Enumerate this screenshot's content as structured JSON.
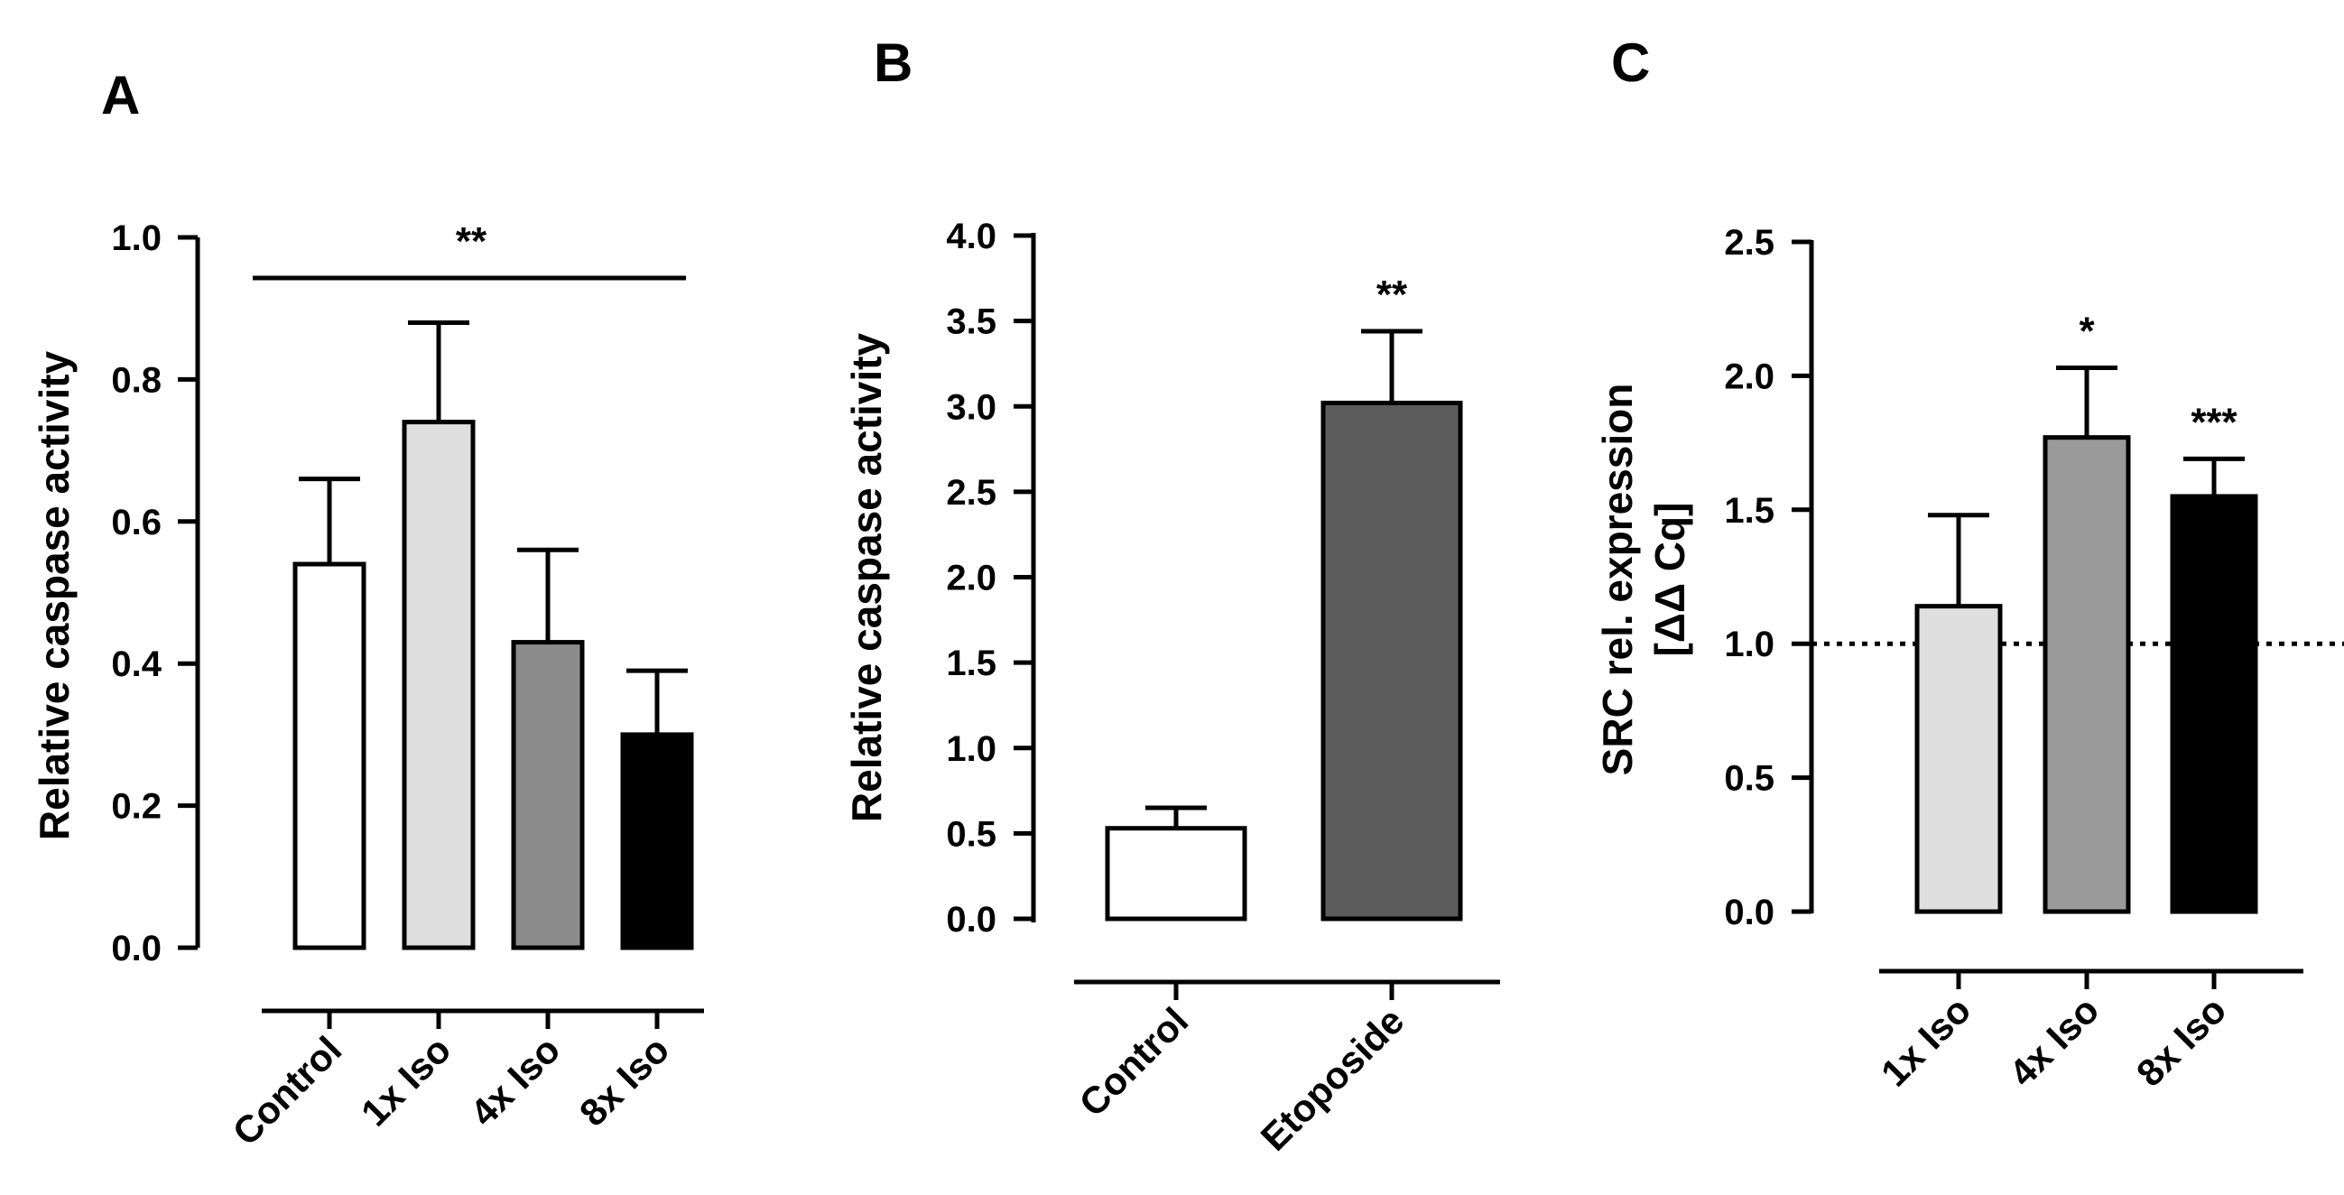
{
  "chart_data": [
    {
      "panel": "A",
      "type": "bar",
      "ylabel": "Relative caspase activity",
      "categories": [
        "Control",
        "1x Iso",
        "4x Iso",
        "8x Iso"
      ],
      "values": [
        0.54,
        0.74,
        0.43,
        0.3
      ],
      "errors": [
        0.12,
        0.14,
        0.13,
        0.09
      ],
      "colors": [
        "#ffffff",
        "#dfdfdf",
        "#8c8c8c",
        "#000000"
      ],
      "ylim": [
        0,
        1.0
      ],
      "yticks": [
        "0.0",
        "0.2",
        "0.4",
        "0.6",
        "0.8",
        "1.0"
      ],
      "significance_bar": {
        "from": "Control",
        "to": "8x Iso",
        "label": "**"
      }
    },
    {
      "panel": "B",
      "type": "bar",
      "ylabel": "Relative caspase activity",
      "categories": [
        "Control",
        "Etoposide"
      ],
      "values": [
        0.53,
        3.02
      ],
      "errors": [
        0.12,
        0.42
      ],
      "colors": [
        "#ffffff",
        "#5c5c5c"
      ],
      "ylim": [
        0,
        4.0
      ],
      "yticks": [
        "0.0",
        "0.5",
        "1.0",
        "1.5",
        "2.0",
        "2.5",
        "3.0",
        "3.5",
        "4.0"
      ],
      "annotations": [
        "",
        "**"
      ]
    },
    {
      "panel": "C",
      "type": "bar",
      "ylabel_line1": "SRC rel. expression",
      "ylabel_line2": "[ΔΔ Cq]",
      "categories": [
        "1x Iso",
        "4x Iso",
        "8x Iso"
      ],
      "values": [
        1.14,
        1.77,
        1.55
      ],
      "errors": [
        0.34,
        0.26,
        0.14
      ],
      "colors": [
        "#dfdfdf",
        "#9a9a9a",
        "#000000"
      ],
      "ylim": [
        0,
        2.5
      ],
      "yticks": [
        "0.0",
        "0.5",
        "1.0",
        "1.5",
        "2.0",
        "2.5"
      ],
      "reference_line": 1.0,
      "annotations": [
        "",
        "*",
        "***"
      ]
    }
  ]
}
